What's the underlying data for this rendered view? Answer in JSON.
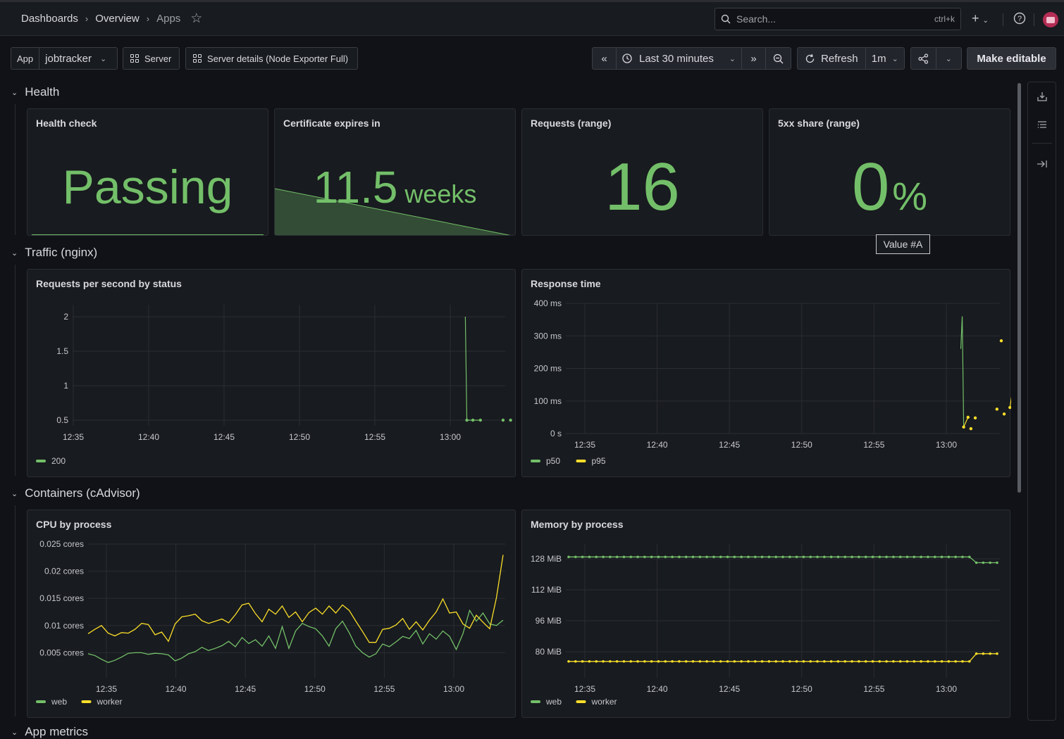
{
  "breadcrumb": [
    "Dashboards",
    "Overview",
    "Apps"
  ],
  "search": {
    "placeholder": "Search...",
    "shortcut": "ctrl+k"
  },
  "variables": {
    "app_label": "App",
    "app_value": "jobtracker"
  },
  "links": [
    "Server",
    "Server details (Node Exporter Full)"
  ],
  "time_picker": {
    "range": "Last 30 minutes",
    "refresh_label": "Refresh",
    "refresh_interval": "1m"
  },
  "make_editable": "Make editable",
  "rows": {
    "health": "Health",
    "traffic": "Traffic (nginx)",
    "containers": "Containers (cAdvisor)",
    "app_metrics": "App metrics"
  },
  "health_panels": {
    "health_check": {
      "title": "Health check",
      "value": "Passing"
    },
    "certificate": {
      "title": "Certificate expires in",
      "value": "11.5",
      "unit": "weeks"
    },
    "requests": {
      "title": "Requests (range)",
      "value": "16"
    },
    "share_5xx": {
      "title": "5xx share (range)",
      "value": "0",
      "unit": "%"
    }
  },
  "tooltip": "Value #A",
  "colors": {
    "green": "#73bf69",
    "yellow": "#fade2a",
    "panel_bg": "#181b1f",
    "page_bg": "#111217"
  },
  "x_ticks": [
    "12:35",
    "12:40",
    "12:45",
    "12:50",
    "12:55",
    "13:00"
  ],
  "chart_data": [
    {
      "type": "line",
      "title": "Requests per second by status",
      "y_ticks": [
        "2",
        "1.5",
        "1",
        "0.5"
      ],
      "ylim": [
        0.5,
        2
      ],
      "series": [
        {
          "name": "200",
          "color": "#73bf69",
          "points": [
            [
              61.0,
              2
            ],
            [
              61.1,
              0.5
            ],
            [
              61.5,
              0.5
            ],
            [
              62.0,
              0.5
            ],
            [
              63.5,
              0.5
            ],
            [
              64.0,
              0.5
            ],
            [
              64.5,
              0.5
            ]
          ]
        }
      ],
      "legend": [
        "200"
      ]
    },
    {
      "type": "line",
      "title": "Response time",
      "y_ticks": [
        "400 ms",
        "300 ms",
        "200 ms",
        "100 ms",
        "0 s"
      ],
      "ylim": [
        0,
        400
      ],
      "series": [
        {
          "name": "p50",
          "color": "#73bf69",
          "points": [
            [
              61.0,
              260
            ],
            [
              61.1,
              360
            ],
            [
              61.2,
              20
            ]
          ]
        },
        {
          "name": "p95",
          "color": "#fade2a",
          "points": [
            [
              61.2,
              20
            ],
            [
              61.5,
              50
            ],
            [
              61.7,
              15
            ],
            [
              62.0,
              48
            ],
            [
              63.5,
              75
            ],
            [
              64.0,
              60
            ],
            [
              64.4,
              80
            ],
            [
              64.6,
              140
            ],
            [
              64.7,
              25
            ],
            [
              63.8,
              285
            ]
          ]
        }
      ],
      "legend": [
        "p50",
        "p95"
      ]
    },
    {
      "type": "line",
      "title": "CPU by process",
      "y_ticks": [
        "0.025 cores",
        "0.02 cores",
        "0.015 cores",
        "0.01 cores",
        "0.005 cores"
      ],
      "ylim": [
        0,
        0.025
      ],
      "series": [
        {
          "name": "web",
          "color": "#73bf69",
          "values": [
            0.0048,
            0.0045,
            0.0038,
            0.0032,
            0.0036,
            0.0042,
            0.0049,
            0.005,
            0.005,
            0.0047,
            0.0049,
            0.0048,
            0.0046,
            0.0035,
            0.004,
            0.0048,
            0.0052,
            0.006,
            0.0054,
            0.0058,
            0.0063,
            0.0071,
            0.0061,
            0.0078,
            0.0067,
            0.0074,
            0.0062,
            0.0081,
            0.0058,
            0.0098,
            0.0058,
            0.009,
            0.0104,
            0.0098,
            0.0094,
            0.0081,
            0.0062,
            0.0094,
            0.0108,
            0.0087,
            0.0062,
            0.005,
            0.0042,
            0.0048,
            0.0066,
            0.0061,
            0.007,
            0.008,
            0.0076,
            0.0091,
            0.0066,
            0.0085,
            0.0075,
            0.009,
            0.008,
            0.0056,
            0.0085,
            0.0128,
            0.0108,
            0.0123,
            0.0103,
            0.01,
            0.011
          ]
        },
        {
          "name": "worker",
          "color": "#fade2a",
          "values": [
            0.0085,
            0.0093,
            0.01,
            0.0086,
            0.0081,
            0.0087,
            0.0086,
            0.0093,
            0.0104,
            0.0102,
            0.0083,
            0.0088,
            0.0071,
            0.0103,
            0.0116,
            0.0118,
            0.0121,
            0.0109,
            0.0104,
            0.0108,
            0.0112,
            0.0105,
            0.012,
            0.0138,
            0.0141,
            0.0122,
            0.0107,
            0.013,
            0.0121,
            0.0136,
            0.0115,
            0.0125,
            0.0107,
            0.0124,
            0.0132,
            0.0121,
            0.0136,
            0.0123,
            0.0138,
            0.0128,
            0.0108,
            0.0089,
            0.0069,
            0.0069,
            0.0093,
            0.0095,
            0.0101,
            0.0113,
            0.0093,
            0.0107,
            0.0092,
            0.011,
            0.0125,
            0.0149,
            0.0123,
            0.0125,
            0.0103,
            0.0095,
            0.0119,
            0.0106,
            0.0094,
            0.0151,
            0.023
          ]
        }
      ],
      "legend": [
        "web",
        "worker"
      ]
    },
    {
      "type": "line",
      "title": "Memory by process",
      "y_ticks": [
        "128 MiB",
        "112 MiB",
        "96 MiB",
        "80 MiB"
      ],
      "ylim": [
        72,
        134
      ],
      "series": [
        {
          "name": "web",
          "color": "#73bf69",
          "values_const": 129,
          "drop_at": 59,
          "drop_to": 126
        },
        {
          "name": "worker",
          "color": "#fade2a",
          "values_const": 75,
          "rise_at": 59,
          "rise_to": 79
        }
      ],
      "legend": [
        "web",
        "worker"
      ]
    }
  ]
}
